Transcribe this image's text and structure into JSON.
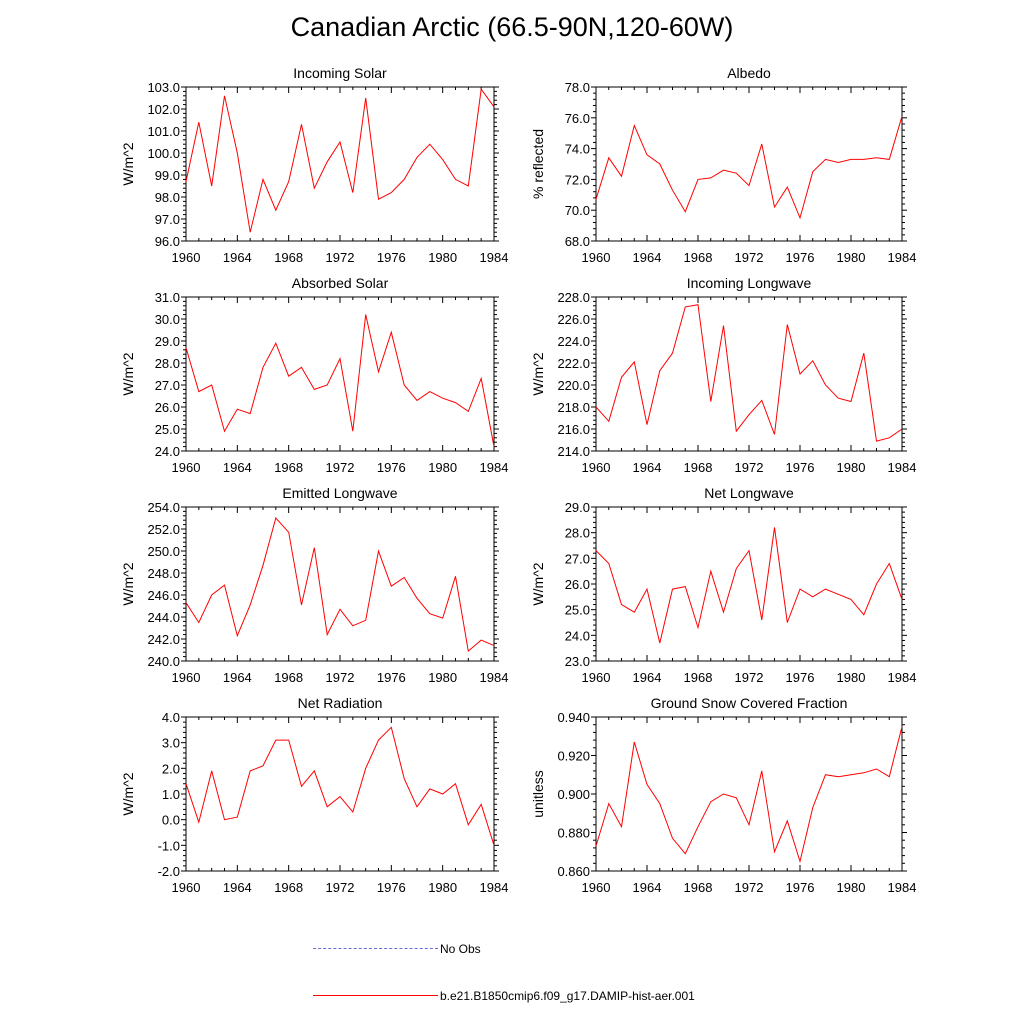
{
  "figure": {
    "title": "Canadian Arctic (66.5-90N,120-60W)",
    "legend": [
      {
        "label": "No Obs",
        "color": "#6b6bd6",
        "style": "dashed"
      },
      {
        "label": "b.e21.B1850cmip6.f09_g17.DAMIP-hist-aer.001",
        "color": "#ff0000",
        "style": "solid"
      }
    ]
  },
  "chart_data": [
    {
      "type": "line",
      "title": "Incoming Solar",
      "ylabel": "W/m^2",
      "xlim": [
        1960,
        1984
      ],
      "ylim": [
        96,
        103
      ],
      "xticks": [
        1960,
        1964,
        1968,
        1972,
        1976,
        1980,
        1984
      ],
      "yticks": [
        96,
        97,
        98,
        99,
        100,
        101,
        102,
        103
      ],
      "ytick_labels": [
        "96.0",
        "97.0",
        "98.0",
        "99.0",
        "100.0",
        "101.0",
        "102.0",
        "103.0"
      ],
      "x": [
        1960,
        1961,
        1962,
        1963,
        1964,
        1965,
        1966,
        1967,
        1968,
        1969,
        1970,
        1971,
        1972,
        1973,
        1974,
        1975,
        1976,
        1977,
        1978,
        1979,
        1980,
        1981,
        1982,
        1983,
        1984
      ],
      "series": [
        {
          "values": [
            98.7,
            101.4,
            98.5,
            102.6,
            100.0,
            96.4,
            98.8,
            97.4,
            98.7,
            101.3,
            98.4,
            99.6,
            100.5,
            98.2,
            102.5,
            97.9,
            98.2,
            98.8,
            99.8,
            100.4,
            99.7,
            98.8,
            98.5,
            102.9,
            102.1
          ],
          "color": "#ff0000"
        }
      ]
    },
    {
      "type": "line",
      "title": "Albedo",
      "ylabel": "% reflected",
      "xlim": [
        1960,
        1984
      ],
      "ylim": [
        68,
        78
      ],
      "xticks": [
        1960,
        1964,
        1968,
        1972,
        1976,
        1980,
        1984
      ],
      "yticks": [
        68,
        70,
        72,
        74,
        76,
        78
      ],
      "ytick_labels": [
        "68.0",
        "70.0",
        "72.0",
        "74.0",
        "76.0",
        "78.0"
      ],
      "x": [
        1960,
        1961,
        1962,
        1963,
        1964,
        1965,
        1966,
        1967,
        1968,
        1969,
        1970,
        1971,
        1972,
        1973,
        1974,
        1975,
        1976,
        1977,
        1978,
        1979,
        1980,
        1981,
        1982,
        1983,
        1984
      ],
      "series": [
        {
          "values": [
            70.7,
            73.4,
            72.2,
            75.5,
            73.6,
            73.0,
            71.3,
            69.9,
            72.0,
            72.1,
            72.6,
            72.4,
            71.6,
            74.3,
            70.2,
            71.5,
            69.5,
            72.5,
            73.3,
            73.1,
            73.3,
            73.3,
            73.4,
            73.3,
            76.1
          ],
          "color": "#ff0000"
        }
      ]
    },
    {
      "type": "line",
      "title": "Absorbed Solar",
      "ylabel": "W/m^2",
      "xlim": [
        1960,
        1984
      ],
      "ylim": [
        24,
        31
      ],
      "xticks": [
        1960,
        1964,
        1968,
        1972,
        1976,
        1980,
        1984
      ],
      "yticks": [
        24,
        25,
        26,
        27,
        28,
        29,
        30,
        31
      ],
      "ytick_labels": [
        "24.0",
        "25.0",
        "26.0",
        "27.0",
        "28.0",
        "29.0",
        "30.0",
        "31.0"
      ],
      "x": [
        1960,
        1961,
        1962,
        1963,
        1964,
        1965,
        1966,
        1967,
        1968,
        1969,
        1970,
        1971,
        1972,
        1973,
        1974,
        1975,
        1976,
        1977,
        1978,
        1979,
        1980,
        1981,
        1982,
        1983,
        1984
      ],
      "series": [
        {
          "values": [
            28.7,
            26.7,
            27.0,
            24.9,
            25.9,
            25.7,
            27.8,
            28.9,
            27.4,
            27.8,
            26.8,
            27.0,
            28.2,
            24.9,
            30.2,
            27.6,
            29.4,
            27.0,
            26.3,
            26.7,
            26.4,
            26.2,
            25.8,
            27.3,
            24.2
          ],
          "color": "#ff0000"
        }
      ]
    },
    {
      "type": "line",
      "title": "Incoming Longwave",
      "ylabel": "W/m^2",
      "xlim": [
        1960,
        1984
      ],
      "ylim": [
        214,
        228
      ],
      "xticks": [
        1960,
        1964,
        1968,
        1972,
        1976,
        1980,
        1984
      ],
      "yticks": [
        214,
        216,
        218,
        220,
        222,
        224,
        226,
        228
      ],
      "ytick_labels": [
        "214.0",
        "216.0",
        "218.0",
        "220.0",
        "222.0",
        "224.0",
        "226.0",
        "228.0"
      ],
      "x": [
        1960,
        1961,
        1962,
        1963,
        1964,
        1965,
        1966,
        1967,
        1968,
        1969,
        1970,
        1971,
        1972,
        1973,
        1974,
        1975,
        1976,
        1977,
        1978,
        1979,
        1980,
        1981,
        1982,
        1983,
        1984
      ],
      "series": [
        {
          "values": [
            218.0,
            216.7,
            220.7,
            222.1,
            216.4,
            221.3,
            222.9,
            227.1,
            227.3,
            218.5,
            225.4,
            215.8,
            217.3,
            218.6,
            215.5,
            225.5,
            221.0,
            222.2,
            220.0,
            218.8,
            218.5,
            222.9,
            214.9,
            215.2,
            216.0
          ],
          "color": "#ff0000"
        }
      ]
    },
    {
      "type": "line",
      "title": "Emitted Longwave",
      "ylabel": "W/m^2",
      "xlim": [
        1960,
        1984
      ],
      "ylim": [
        240,
        254
      ],
      "xticks": [
        1960,
        1964,
        1968,
        1972,
        1976,
        1980,
        1984
      ],
      "yticks": [
        240,
        242,
        244,
        246,
        248,
        250,
        252,
        254
      ],
      "ytick_labels": [
        "240.0",
        "242.0",
        "244.0",
        "246.0",
        "248.0",
        "250.0",
        "252.0",
        "254.0"
      ],
      "x": [
        1960,
        1961,
        1962,
        1963,
        1964,
        1965,
        1966,
        1967,
        1968,
        1969,
        1970,
        1971,
        1972,
        1973,
        1974,
        1975,
        1976,
        1977,
        1978,
        1979,
        1980,
        1981,
        1982,
        1983,
        1984
      ],
      "series": [
        {
          "values": [
            245.3,
            243.5,
            246.0,
            246.9,
            242.3,
            245.1,
            248.7,
            253.0,
            251.7,
            245.1,
            250.3,
            242.4,
            244.7,
            243.2,
            243.7,
            250.0,
            246.8,
            247.6,
            245.7,
            244.3,
            243.9,
            247.7,
            240.9,
            241.9,
            241.4
          ],
          "color": "#ff0000"
        }
      ]
    },
    {
      "type": "line",
      "title": "Net Longwave",
      "ylabel": "W/m^2",
      "xlim": [
        1960,
        1984
      ],
      "ylim": [
        23,
        29
      ],
      "xticks": [
        1960,
        1964,
        1968,
        1972,
        1976,
        1980,
        1984
      ],
      "yticks": [
        23,
        24,
        25,
        26,
        27,
        28,
        29
      ],
      "ytick_labels": [
        "23.0",
        "24.0",
        "25.0",
        "26.0",
        "27.0",
        "28.0",
        "29.0"
      ],
      "x": [
        1960,
        1961,
        1962,
        1963,
        1964,
        1965,
        1966,
        1967,
        1968,
        1969,
        1970,
        1971,
        1972,
        1973,
        1974,
        1975,
        1976,
        1977,
        1978,
        1979,
        1980,
        1981,
        1982,
        1983,
        1984
      ],
      "series": [
        {
          "values": [
            27.3,
            26.8,
            25.2,
            24.9,
            25.8,
            23.7,
            25.8,
            25.9,
            24.3,
            26.5,
            24.9,
            26.6,
            27.3,
            24.6,
            28.2,
            24.5,
            25.8,
            25.5,
            25.8,
            25.6,
            25.4,
            24.8,
            26.0,
            26.8,
            25.4
          ],
          "color": "#ff0000"
        }
      ]
    },
    {
      "type": "line",
      "title": "Net Radiation",
      "ylabel": "W/m^2",
      "xlim": [
        1960,
        1984
      ],
      "ylim": [
        -2,
        4
      ],
      "xticks": [
        1960,
        1964,
        1968,
        1972,
        1976,
        1980,
        1984
      ],
      "yticks": [
        -2,
        -1,
        0,
        1,
        2,
        3,
        4
      ],
      "ytick_labels": [
        "-2.0",
        "-1.0",
        "0.0",
        "1.0",
        "2.0",
        "3.0",
        "4.0"
      ],
      "x": [
        1960,
        1961,
        1962,
        1963,
        1964,
        1965,
        1966,
        1967,
        1968,
        1969,
        1970,
        1971,
        1972,
        1973,
        1974,
        1975,
        1976,
        1977,
        1978,
        1979,
        1980,
        1981,
        1982,
        1983,
        1984
      ],
      "series": [
        {
          "values": [
            1.4,
            -0.1,
            1.9,
            0.0,
            0.1,
            1.9,
            2.1,
            3.1,
            3.1,
            1.3,
            1.9,
            0.5,
            0.9,
            0.3,
            2.0,
            3.1,
            3.6,
            1.6,
            0.5,
            1.2,
            1.0,
            1.4,
            -0.2,
            0.6,
            -1.0
          ],
          "color": "#ff0000"
        }
      ]
    },
    {
      "type": "line",
      "title": "Ground Snow Covered Fraction",
      "ylabel": "unitless",
      "xlim": [
        1960,
        1984
      ],
      "ylim": [
        0.86,
        0.94
      ],
      "xticks": [
        1960,
        1964,
        1968,
        1972,
        1976,
        1980,
        1984
      ],
      "yticks": [
        0.86,
        0.88,
        0.9,
        0.92,
        0.94
      ],
      "ytick_labels": [
        "0.860",
        "0.880",
        "0.900",
        "0.920",
        "0.940"
      ],
      "x": [
        1960,
        1961,
        1962,
        1963,
        1964,
        1965,
        1966,
        1967,
        1968,
        1969,
        1970,
        1971,
        1972,
        1973,
        1974,
        1975,
        1976,
        1977,
        1978,
        1979,
        1980,
        1981,
        1982,
        1983,
        1984
      ],
      "series": [
        {
          "values": [
            0.873,
            0.895,
            0.883,
            0.927,
            0.905,
            0.895,
            0.877,
            0.869,
            0.883,
            0.896,
            0.9,
            0.898,
            0.884,
            0.912,
            0.87,
            0.886,
            0.865,
            0.893,
            0.91,
            0.909,
            0.91,
            0.911,
            0.913,
            0.909,
            0.935
          ],
          "color": "#ff0000"
        }
      ]
    }
  ]
}
